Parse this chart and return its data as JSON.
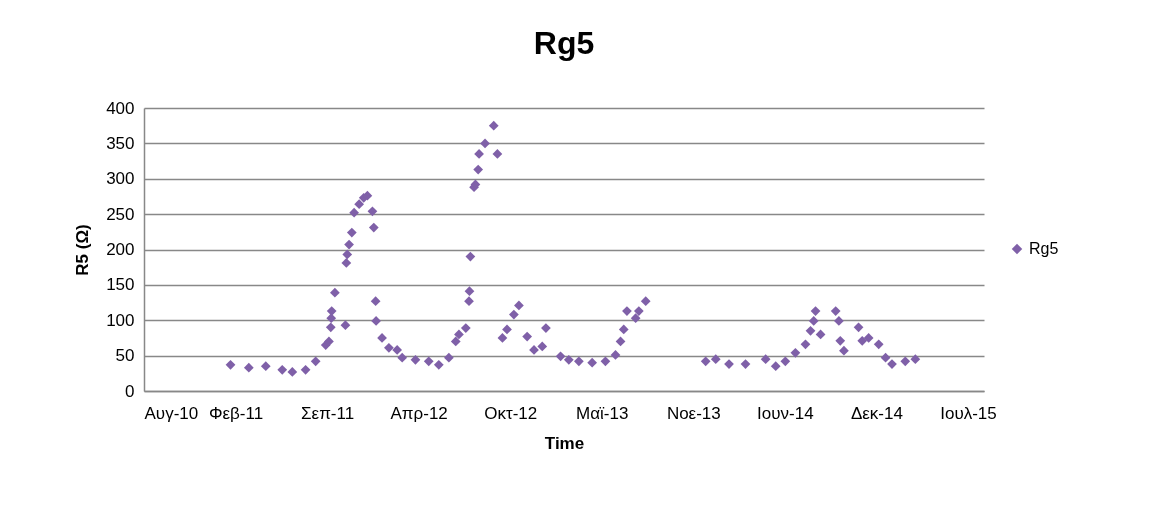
{
  "chart_data": {
    "type": "scatter",
    "title": "Rg5",
    "xlabel": "Time",
    "ylabel": "R5 (Ω)",
    "marker": "diamond",
    "grid": "y",
    "legend": "right",
    "xlim": [
      "2010-08-11",
      "2015-08-20"
    ],
    "xticks": [
      {
        "value": "2010-08-11",
        "label": "Αυγ-10"
      },
      {
        "value": "2011-02-27",
        "label": "Φεβ-11"
      },
      {
        "value": "2011-09-15",
        "label": "Σεπ-11"
      },
      {
        "value": "2012-04-02",
        "label": "Απρ-12"
      },
      {
        "value": "2012-10-19",
        "label": "Οκτ-12"
      },
      {
        "value": "2013-05-07",
        "label": "Μαϊ-13"
      },
      {
        "value": "2013-11-23",
        "label": "Νοε-13"
      },
      {
        "value": "2014-06-11",
        "label": "Ιουν-14"
      },
      {
        "value": "2014-12-28",
        "label": "Δεκ-14"
      },
      {
        "value": "2015-07-16",
        "label": "Ιουλ-15"
      }
    ],
    "ylim": [
      0,
      400
    ],
    "yticks": [
      0,
      50,
      100,
      150,
      200,
      250,
      300,
      350,
      400
    ],
    "series": [
      {
        "name": "Rg5",
        "color": "#7f60a8",
        "x": [
          "2011-02-16",
          "2011-03-28",
          "2011-05-04",
          "2011-06-09",
          "2011-07-01",
          "2011-07-30",
          "2011-08-21",
          "2011-09-12",
          "2011-09-19",
          "2011-09-23",
          "2011-09-24",
          "2011-09-25",
          "2011-10-02",
          "2011-10-25",
          "2011-10-27",
          "2011-10-29",
          "2011-11-02",
          "2011-11-08",
          "2011-11-13",
          "2011-11-24",
          "2011-12-04",
          "2011-12-12",
          "2011-12-23",
          "2011-12-26",
          "2011-12-30",
          "2011-12-31",
          "2012-01-13",
          "2012-01-28",
          "2012-02-15",
          "2012-02-26",
          "2012-03-26",
          "2012-04-24",
          "2012-05-16",
          "2012-06-07",
          "2012-06-22",
          "2012-06-29",
          "2012-07-14",
          "2012-07-21",
          "2012-07-22",
          "2012-07-24",
          "2012-08-01",
          "2012-08-04",
          "2012-08-10",
          "2012-08-12",
          "2012-08-25",
          "2012-09-13",
          "2012-09-21",
          "2012-10-02",
          "2012-10-12",
          "2012-10-27",
          "2012-11-07",
          "2012-11-25",
          "2012-12-10",
          "2012-12-28",
          "2013-01-05",
          "2013-02-06",
          "2013-02-24",
          "2013-03-18",
          "2013-04-16",
          "2013-05-15",
          "2013-06-06",
          "2013-06-17",
          "2013-06-24",
          "2013-07-01",
          "2013-07-20",
          "2013-07-27",
          "2013-08-11",
          "2013-12-20",
          "2014-01-11",
          "2014-02-09",
          "2014-03-17",
          "2014-04-30",
          "2014-05-22",
          "2014-06-12",
          "2014-07-04",
          "2014-07-26",
          "2014-08-06",
          "2014-08-13",
          "2014-08-17",
          "2014-08-28",
          "2014-09-30",
          "2014-10-07",
          "2014-10-10",
          "2014-10-18",
          "2014-11-19",
          "2014-11-27",
          "2014-12-11",
          "2015-01-02",
          "2015-01-17",
          "2015-01-31",
          "2015-03-01",
          "2015-03-23"
        ],
        "values": [
          37,
          33,
          35,
          30,
          27,
          30,
          42,
          65,
          70,
          90,
          103,
          113,
          139,
          93,
          181,
          193,
          207,
          224,
          252,
          264,
          273,
          276,
          254,
          231,
          127,
          99,
          75,
          61,
          58,
          47,
          44,
          42,
          37,
          47,
          70,
          80,
          89,
          127,
          141,
          190,
          288,
          292,
          313,
          335,
          350,
          375,
          335,
          75,
          87,
          108,
          121,
          77,
          58,
          63,
          89,
          49,
          44,
          42,
          40,
          42,
          51,
          70,
          87,
          113,
          103,
          113,
          127,
          42,
          45,
          38,
          38,
          45,
          35,
          42,
          54,
          66,
          85,
          99,
          113,
          80,
          113,
          99,
          71,
          57,
          90,
          71,
          75,
          66,
          47,
          38,
          42,
          45
        ]
      }
    ]
  }
}
